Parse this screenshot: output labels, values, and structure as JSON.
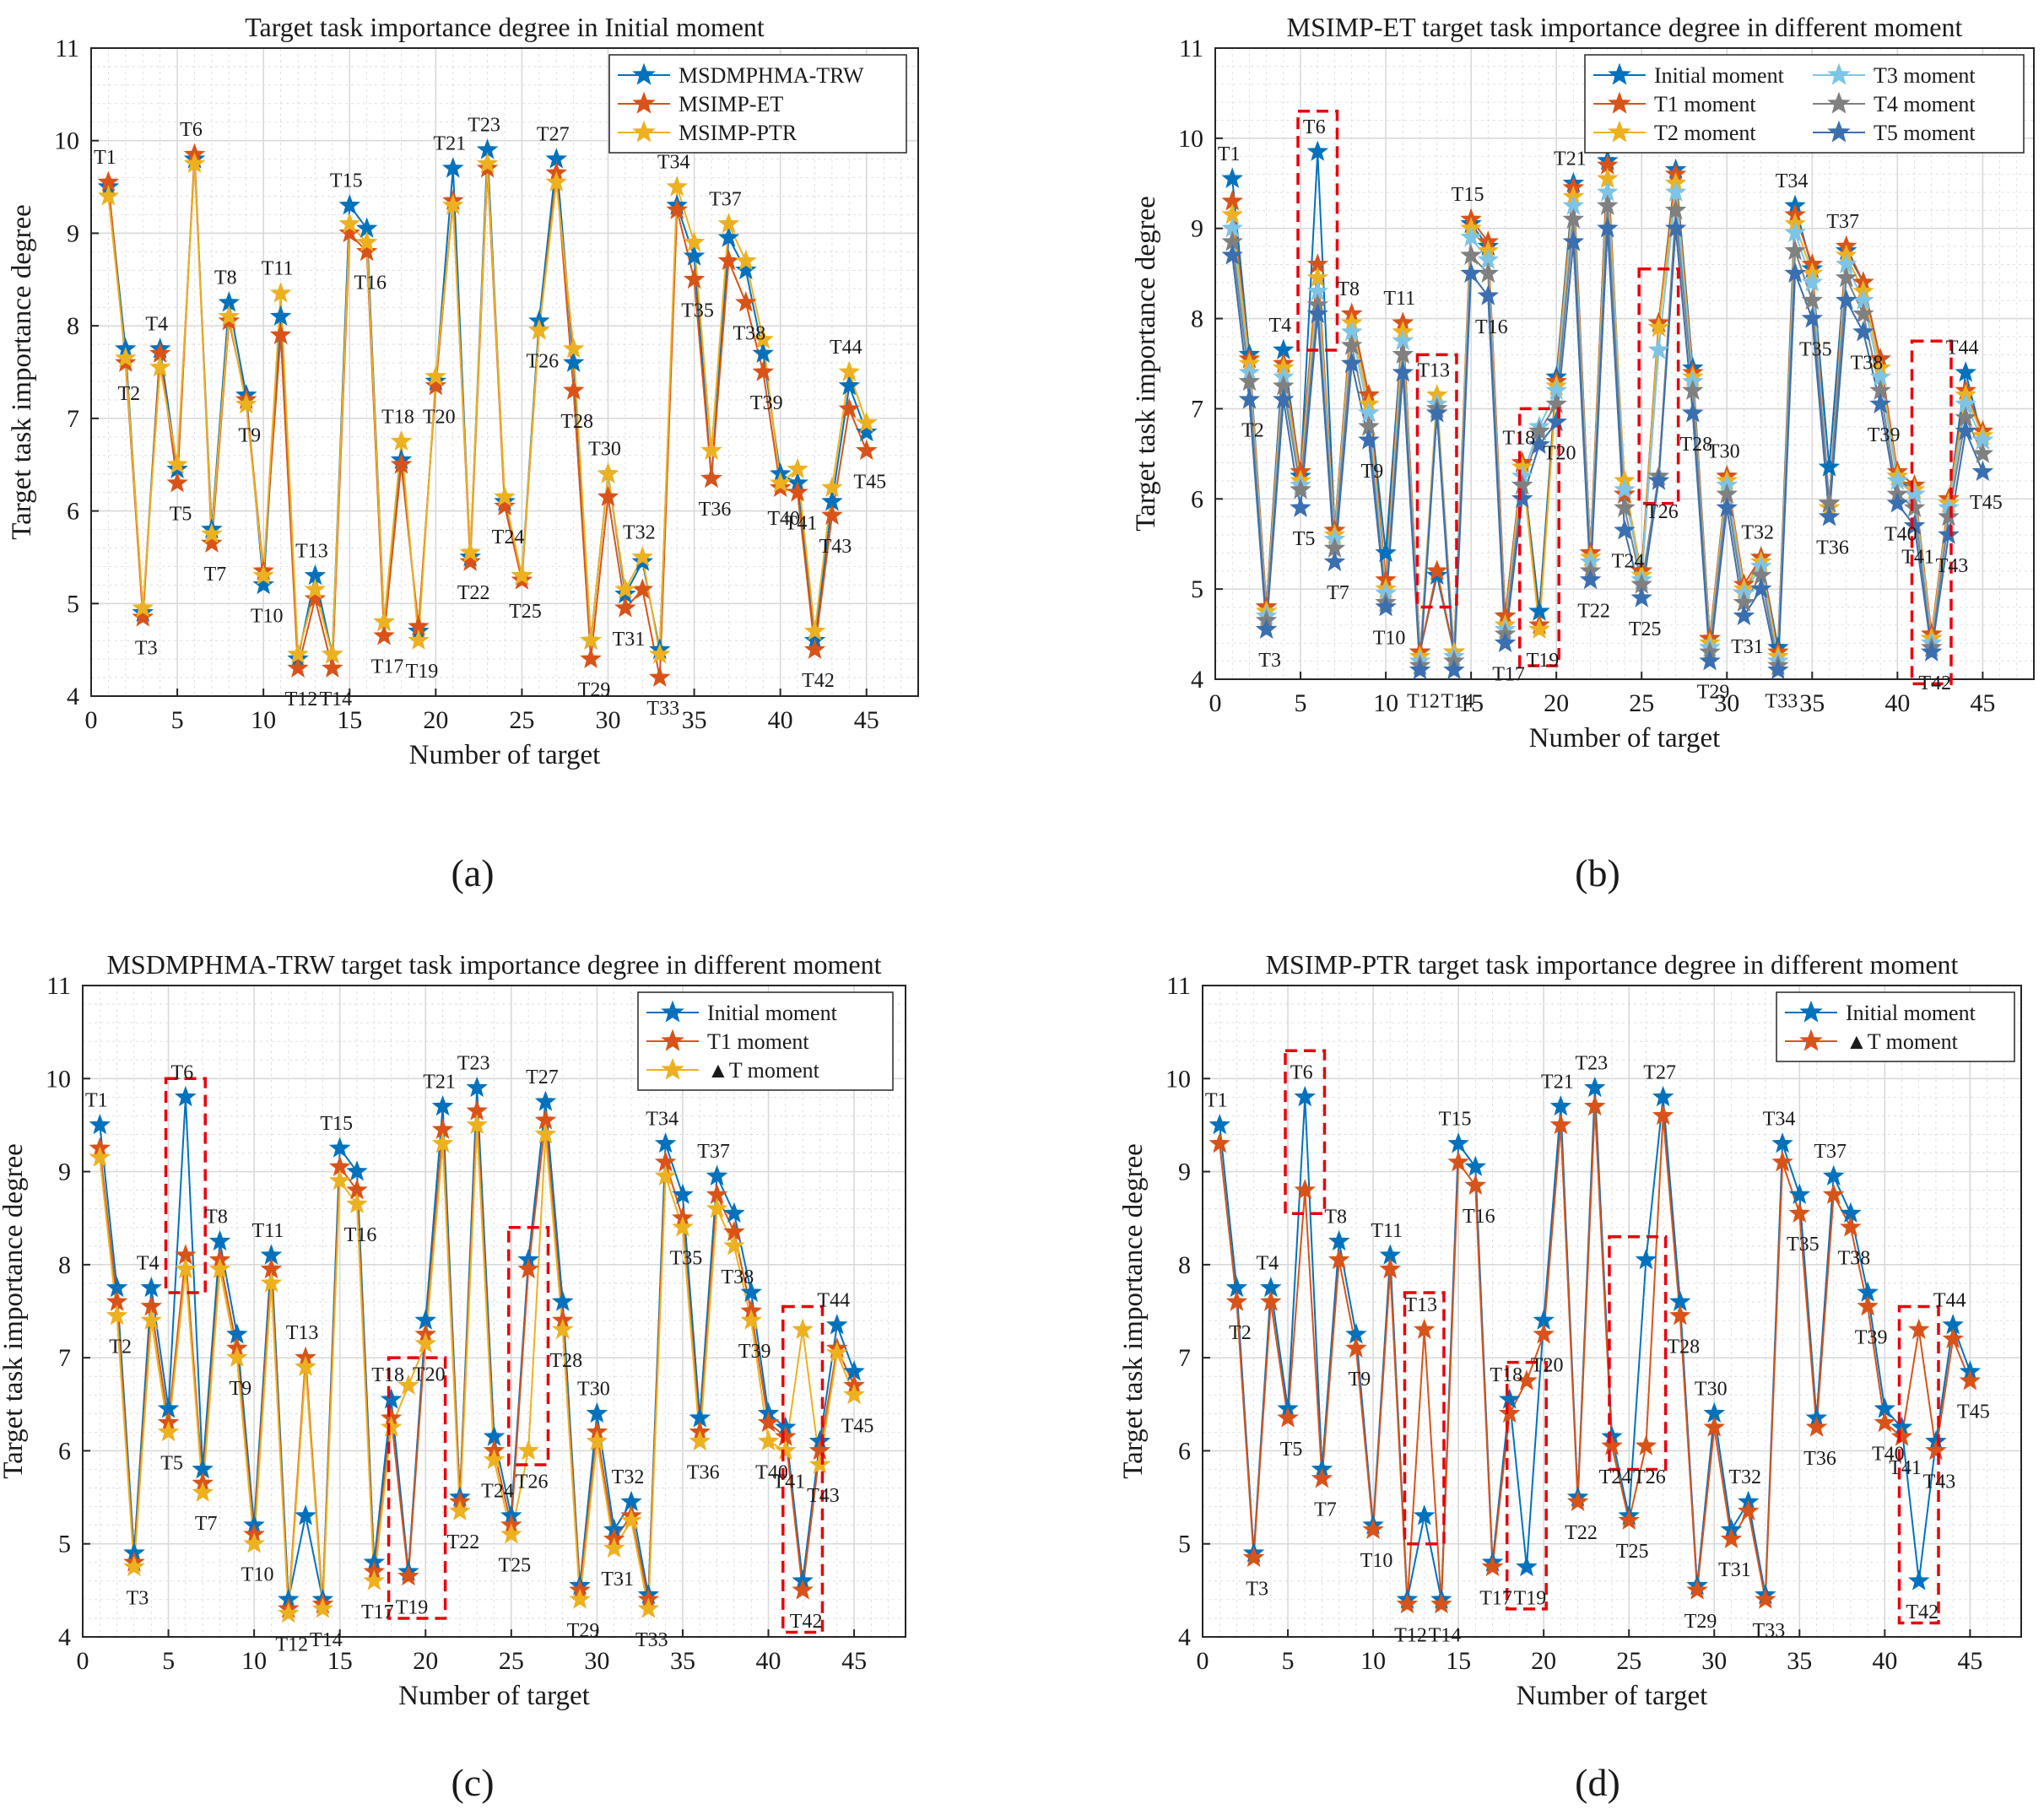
{
  "colors": {
    "initial": "#0072BD",
    "t1": "#D95319",
    "t2": "#EDB120",
    "t3": "#7EC4E6",
    "t4": "#808080",
    "t5": "#3A6FB0",
    "highlight_box": "#E8000B",
    "grid": "#D9D9D9"
  },
  "marker_icon": "five-point-star",
  "panel_labels": [
    "(a)",
    "(b)",
    "(c)",
    "(d)"
  ],
  "chart_data": [
    {
      "type": "line",
      "panel": "(a)",
      "title": "Target task importance degree in Initial moment",
      "xlabel": "Number of target",
      "ylabel": "Target task importance degree",
      "xlim": [
        0,
        48
      ],
      "ylim": [
        4,
        11
      ],
      "xticks": [
        0,
        5,
        10,
        15,
        20,
        25,
        30,
        35,
        40,
        45
      ],
      "yticks": [
        4,
        5,
        6,
        7,
        8,
        9,
        10,
        11
      ],
      "grid": true,
      "legend_position": "top-right",
      "legend_columns": 1,
      "point_labels": [
        "T1",
        "T2",
        "T3",
        "T4",
        "T5",
        "T6",
        "T7",
        "T8",
        "T9",
        "T10",
        "T11",
        "T12",
        "T13",
        "T14",
        "T15",
        "T16",
        "T17",
        "T18",
        "T19",
        "T20",
        "T21",
        "T22",
        "T23",
        "T24",
        "T25",
        "T26",
        "T27",
        "T28",
        "T29",
        "T30",
        "T31",
        "T32",
        "T33",
        "T34",
        "T35",
        "T36",
        "T37",
        "T38",
        "T39",
        "T40",
        "T41",
        "T42",
        "T43",
        "T44",
        "T45"
      ],
      "series": [
        {
          "name": "MSDMPHMA-TRW",
          "color_key": "initial",
          "values": [
            9.5,
            7.75,
            4.9,
            7.75,
            6.45,
            9.8,
            5.8,
            8.25,
            7.25,
            5.2,
            8.1,
            4.4,
            5.3,
            4.45,
            9.3,
            9.05,
            4.8,
            6.55,
            4.7,
            7.4,
            9.7,
            5.5,
            9.9,
            6.1,
            5.3,
            8.05,
            9.8,
            7.6,
            4.6,
            6.4,
            5.1,
            5.45,
            4.5,
            9.3,
            8.75,
            6.35,
            8.95,
            8.6,
            7.7,
            6.4,
            6.3,
            4.6,
            6.1,
            7.35,
            6.85
          ]
        },
        {
          "name": "MSIMP-ET",
          "color_key": "t1",
          "values": [
            9.55,
            7.6,
            4.85,
            7.7,
            6.3,
            9.85,
            5.65,
            8.05,
            7.2,
            5.35,
            7.9,
            4.3,
            5.05,
            4.3,
            9.0,
            8.8,
            4.65,
            6.5,
            4.75,
            7.35,
            9.35,
            5.45,
            9.7,
            6.05,
            5.25,
            7.95,
            9.65,
            7.3,
            4.4,
            6.15,
            4.95,
            5.15,
            4.2,
            9.25,
            8.5,
            6.35,
            8.7,
            8.25,
            7.5,
            6.25,
            6.2,
            4.5,
            5.95,
            7.1,
            6.65
          ]
        },
        {
          "name": "MSIMP-PTR",
          "color_key": "t2",
          "values": [
            9.4,
            7.65,
            4.95,
            7.55,
            6.5,
            9.75,
            5.75,
            8.1,
            7.15,
            5.3,
            8.35,
            4.45,
            5.15,
            4.45,
            9.1,
            8.9,
            4.8,
            6.75,
            4.6,
            7.45,
            9.3,
            5.55,
            9.75,
            6.15,
            5.3,
            7.95,
            9.55,
            7.75,
            4.6,
            6.4,
            5.15,
            5.5,
            4.45,
            9.5,
            8.9,
            6.65,
            9.1,
            8.7,
            7.85,
            6.3,
            6.45,
            4.7,
            6.25,
            7.5,
            6.95
          ]
        }
      ]
    },
    {
      "type": "line",
      "panel": "(b)",
      "title": "MSIMP-ET target task importance degree in different moment",
      "xlabel": "Number of target",
      "ylabel": "Target task importance degree",
      "xlim": [
        0,
        48
      ],
      "ylim": [
        4,
        11
      ],
      "xticks": [
        0,
        5,
        10,
        15,
        20,
        25,
        30,
        35,
        40,
        45
      ],
      "yticks": [
        4,
        5,
        6,
        7,
        8,
        9,
        10,
        11
      ],
      "grid": true,
      "legend_position": "top-right",
      "legend_columns": 2,
      "point_labels": [
        "T1",
        "T2",
        "T3",
        "T4",
        "T5",
        "T6",
        "T7",
        "T8",
        "T9",
        "T10",
        "T11",
        "T12",
        "T13",
        "T14",
        "T15",
        "T16",
        "T17",
        "T18",
        "T19",
        "T20",
        "T21",
        "T22",
        "T23",
        "T24",
        "T25",
        "T26",
        "T27",
        "T28",
        "T29",
        "T30",
        "T31",
        "T32",
        "T33",
        "T34",
        "T35",
        "T36",
        "T37",
        "T38",
        "T39",
        "T40",
        "T41",
        "T42",
        "T43",
        "T44",
        "T45"
      ],
      "highlight_boxes": [
        [
          5,
          7,
          7.65,
          10.3
        ],
        [
          12,
          14,
          4.8,
          7.6
        ],
        [
          18,
          20,
          4.15,
          7.0
        ],
        [
          25,
          27,
          5.95,
          8.55
        ],
        [
          41,
          43,
          3.95,
          7.75
        ]
      ],
      "series": [
        {
          "name": "Initial moment",
          "color_key": "initial",
          "values": [
            9.55,
            7.6,
            4.8,
            7.65,
            6.25,
            9.85,
            5.65,
            8.05,
            7.15,
            5.4,
            7.95,
            4.3,
            5.15,
            4.3,
            9.05,
            8.8,
            4.7,
            6.4,
            4.75,
            7.35,
            9.5,
            5.4,
            9.75,
            6.05,
            5.2,
            7.95,
            9.65,
            7.45,
            4.45,
            6.25,
            4.95,
            5.35,
            4.35,
            9.25,
            8.55,
            6.35,
            8.75,
            8.4,
            7.55,
            6.25,
            6.05,
            4.45,
            5.95,
            7.4,
            6.65
          ]
        },
        {
          "name": "T1 moment",
          "color_key": "t1",
          "values": [
            9.3,
            7.55,
            4.8,
            7.5,
            6.3,
            8.6,
            5.65,
            8.05,
            7.15,
            5.1,
            7.95,
            4.3,
            5.2,
            4.3,
            9.1,
            8.85,
            4.7,
            6.4,
            4.6,
            7.3,
            9.45,
            5.4,
            9.7,
            6.05,
            5.2,
            7.95,
            9.6,
            7.4,
            4.45,
            6.25,
            5.05,
            5.35,
            4.3,
            9.15,
            8.6,
            5.95,
            8.8,
            8.4,
            7.55,
            6.3,
            6.15,
            4.5,
            6.0,
            7.2,
            6.75
          ]
        },
        {
          "name": "T2 moment",
          "color_key": "t2",
          "values": [
            9.15,
            7.5,
            4.75,
            7.45,
            6.2,
            8.45,
            5.6,
            7.95,
            7.05,
            5.0,
            7.85,
            4.25,
            7.15,
            4.3,
            9.0,
            8.75,
            4.6,
            6.35,
            4.55,
            7.25,
            9.35,
            5.35,
            9.55,
            6.2,
            5.15,
            7.9,
            9.5,
            7.35,
            4.4,
            6.2,
            5.0,
            5.3,
            4.25,
            9.05,
            8.5,
            5.9,
            8.7,
            8.3,
            7.45,
            6.25,
            6.1,
            4.45,
            5.95,
            7.15,
            6.7
          ]
        },
        {
          "name": "T3 moment",
          "color_key": "t3",
          "values": [
            9.0,
            7.4,
            4.7,
            7.35,
            6.15,
            8.3,
            5.55,
            7.85,
            6.95,
            4.95,
            7.75,
            4.2,
            7.05,
            4.25,
            8.9,
            8.65,
            4.55,
            6.25,
            6.8,
            7.2,
            9.25,
            5.3,
            9.4,
            6.1,
            5.1,
            7.65,
            9.4,
            7.3,
            4.35,
            6.15,
            4.95,
            5.25,
            4.2,
            8.95,
            8.4,
            5.95,
            8.6,
            8.2,
            7.35,
            6.2,
            6.05,
            4.4,
            5.9,
            7.05,
            6.65
          ]
        },
        {
          "name": "T4 moment",
          "color_key": "t4",
          "values": [
            8.85,
            7.3,
            4.65,
            7.25,
            6.1,
            8.15,
            5.45,
            7.7,
            6.8,
            4.85,
            7.6,
            4.15,
            7.0,
            4.2,
            8.7,
            8.5,
            4.5,
            6.15,
            6.75,
            7.05,
            9.1,
            5.2,
            9.25,
            5.9,
            5.05,
            6.25,
            9.2,
            7.2,
            4.3,
            6.05,
            4.85,
            5.15,
            4.15,
            8.75,
            8.2,
            5.95,
            8.45,
            8.05,
            7.2,
            6.05,
            5.9,
            4.35,
            5.8,
            6.9,
            6.5
          ]
        },
        {
          "name": "T5 moment",
          "color_key": "t5",
          "values": [
            8.7,
            7.1,
            4.55,
            7.1,
            5.9,
            8.05,
            5.3,
            7.5,
            6.65,
            4.8,
            7.4,
            4.1,
            6.95,
            4.1,
            8.5,
            8.25,
            4.4,
            6.0,
            6.6,
            6.85,
            8.85,
            5.1,
            9.0,
            5.65,
            4.9,
            6.2,
            9.0,
            6.95,
            4.2,
            5.9,
            4.7,
            5.0,
            4.1,
            8.5,
            8.0,
            5.8,
            8.2,
            7.85,
            7.05,
            5.95,
            5.7,
            4.3,
            5.6,
            6.75,
            6.3
          ]
        }
      ]
    },
    {
      "type": "line",
      "panel": "(c)",
      "title": "MSDMPHMA-TRW target task importance degree in different moment",
      "xlabel": "Number of target",
      "ylabel": "Target task importance degree",
      "xlim": [
        0,
        48
      ],
      "ylim": [
        4,
        11
      ],
      "xticks": [
        0,
        5,
        10,
        15,
        20,
        25,
        30,
        35,
        40,
        45
      ],
      "yticks": [
        4,
        5,
        6,
        7,
        8,
        9,
        10,
        11
      ],
      "grid": true,
      "legend_position": "top-right",
      "legend_columns": 1,
      "point_labels": [
        "T1",
        "T2",
        "T3",
        "T4",
        "T5",
        "T6",
        "T7",
        "T8",
        "T9",
        "T10",
        "T11",
        "T12",
        "T13",
        "T14",
        "T15",
        "T16",
        "T17",
        "T18",
        "T19",
        "T20",
        "T21",
        "T22",
        "T23",
        "T24",
        "T25",
        "T26",
        "T27",
        "T28",
        "T29",
        "T30",
        "T31",
        "T32",
        "T33",
        "T34",
        "T35",
        "T36",
        "T37",
        "T38",
        "T39",
        "T40",
        "T41",
        "T42",
        "T43",
        "T44",
        "T45"
      ],
      "highlight_boxes": [
        [
          5,
          7,
          7.7,
          10.0
        ],
        [
          18,
          21,
          4.2,
          7.0
        ],
        [
          25,
          27,
          5.85,
          8.4
        ],
        [
          41,
          43,
          4.05,
          7.55
        ]
      ],
      "series": [
        {
          "name": "Initial moment",
          "color_key": "initial",
          "values": [
            9.5,
            7.75,
            4.9,
            7.75,
            6.45,
            9.8,
            5.8,
            8.25,
            7.25,
            5.2,
            8.1,
            4.4,
            5.3,
            4.4,
            9.25,
            9.0,
            4.8,
            6.55,
            4.7,
            7.4,
            9.7,
            5.5,
            9.9,
            6.15,
            5.3,
            8.05,
            9.75,
            7.6,
            4.55,
            6.4,
            5.15,
            5.45,
            4.45,
            9.3,
            8.75,
            6.35,
            8.95,
            8.55,
            7.7,
            6.4,
            6.25,
            4.6,
            6.1,
            7.35,
            6.85
          ]
        },
        {
          "name": "T1 moment",
          "color_key": "t1",
          "values": [
            9.25,
            7.6,
            4.8,
            7.55,
            6.3,
            8.1,
            5.65,
            8.05,
            7.1,
            5.1,
            7.95,
            4.3,
            7.0,
            4.35,
            9.05,
            8.8,
            4.7,
            6.35,
            4.65,
            7.25,
            9.45,
            5.45,
            9.65,
            6.0,
            5.2,
            7.95,
            9.55,
            7.4,
            4.5,
            6.2,
            5.05,
            5.3,
            4.4,
            9.1,
            8.5,
            6.2,
            8.75,
            8.35,
            7.5,
            6.3,
            6.15,
            4.5,
            6.0,
            7.1,
            6.7
          ]
        },
        {
          "name": "▲T moment",
          "color_key": "t2",
          "values": [
            9.15,
            7.45,
            4.75,
            7.4,
            6.2,
            7.95,
            5.55,
            7.95,
            7.0,
            5.0,
            7.8,
            4.25,
            6.9,
            4.3,
            8.9,
            8.65,
            4.6,
            6.25,
            6.7,
            7.15,
            9.3,
            5.35,
            9.5,
            5.9,
            5.1,
            6.0,
            9.4,
            7.3,
            4.4,
            6.1,
            4.95,
            5.25,
            4.3,
            8.95,
            8.4,
            6.1,
            8.6,
            8.2,
            7.4,
            6.1,
            6.0,
            7.3,
            5.85,
            7.05,
            6.6
          ]
        }
      ]
    },
    {
      "type": "line",
      "panel": "(d)",
      "title": "MSIMP-PTR target task importance degree in different moment",
      "xlabel": "Number of target",
      "ylabel": "Target task importance degree",
      "xlim": [
        0,
        48
      ],
      "ylim": [
        4,
        11
      ],
      "xticks": [
        0,
        5,
        10,
        15,
        20,
        25,
        30,
        35,
        40,
        45
      ],
      "yticks": [
        4,
        5,
        6,
        7,
        8,
        9,
        10,
        11
      ],
      "grid": true,
      "legend_position": "top-right",
      "legend_columns": 1,
      "point_labels": [
        "T1",
        "T2",
        "T3",
        "T4",
        "T5",
        "T6",
        "T7",
        "T8",
        "T9",
        "T10",
        "T11",
        "T12",
        "T13",
        "T14",
        "T15",
        "T16",
        "T17",
        "T18",
        "T19",
        "T20",
        "T21",
        "T22",
        "T23",
        "T24",
        "T25",
        "T26",
        "T27",
        "T28",
        "T29",
        "T30",
        "T31",
        "T32",
        "T33",
        "T34",
        "T35",
        "T36",
        "T37",
        "T38",
        "T39",
        "T40",
        "T41",
        "T42",
        "T43",
        "T44",
        "T45"
      ],
      "highlight_boxes": [
        [
          5,
          7,
          8.55,
          10.3
        ],
        [
          12,
          14,
          5.0,
          7.7
        ],
        [
          18,
          20,
          4.3,
          6.95
        ],
        [
          24,
          27,
          5.8,
          8.3
        ],
        [
          41,
          43,
          4.15,
          7.55
        ]
      ],
      "series": [
        {
          "name": "Initial moment",
          "color_key": "initial",
          "values": [
            9.5,
            7.75,
            4.9,
            7.75,
            6.45,
            9.8,
            5.8,
            8.25,
            7.25,
            5.2,
            8.1,
            4.4,
            5.3,
            4.4,
            9.3,
            9.05,
            4.8,
            6.55,
            4.75,
            7.4,
            9.7,
            5.5,
            9.9,
            6.15,
            5.3,
            8.05,
            9.8,
            7.6,
            4.55,
            6.4,
            5.15,
            5.45,
            4.45,
            9.3,
            8.75,
            6.35,
            8.95,
            8.55,
            7.7,
            6.45,
            6.25,
            4.6,
            6.1,
            7.35,
            6.85
          ]
        },
        {
          "name": "▲T moment",
          "color_key": "t1",
          "values": [
            9.3,
            7.6,
            4.85,
            7.6,
            6.35,
            8.8,
            5.7,
            8.05,
            7.1,
            5.15,
            7.95,
            4.35,
            7.3,
            4.35,
            9.1,
            8.85,
            4.75,
            6.4,
            6.75,
            7.25,
            9.5,
            5.45,
            9.7,
            6.05,
            5.25,
            6.05,
            9.6,
            7.45,
            4.5,
            6.25,
            5.05,
            5.35,
            4.4,
            9.1,
            8.55,
            6.25,
            8.75,
            8.4,
            7.55,
            6.3,
            6.15,
            7.3,
            6.0,
            7.2,
            6.75
          ]
        }
      ]
    }
  ]
}
